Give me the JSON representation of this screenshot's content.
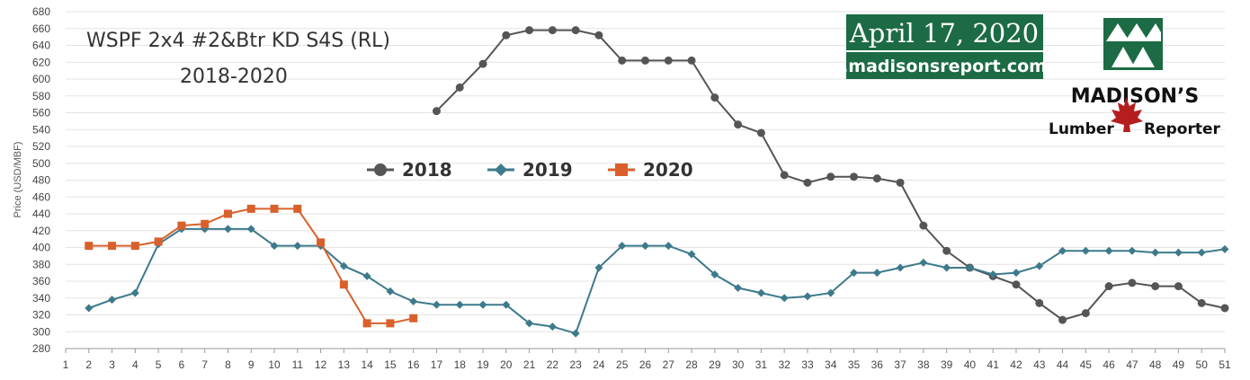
{
  "chart_data": {
    "type": "line",
    "title_line1": "WSPF 2x4 #2&Btr KD S4S (RL)",
    "title_line2": "2018-2020",
    "ylabel": "Price (USD/MBF)",
    "xlabel": "",
    "ylim": [
      280,
      680
    ],
    "ytick_step": 20,
    "xlim": [
      1,
      51
    ],
    "grid": true,
    "legend_position": "center",
    "series": [
      {
        "name": "2018",
        "color": "#555555",
        "marker": "circle",
        "points": [
          [
            17,
            562
          ],
          [
            18,
            590
          ],
          [
            19,
            618
          ],
          [
            20,
            652
          ],
          [
            21,
            658
          ],
          [
            22,
            658
          ],
          [
            23,
            658
          ],
          [
            24,
            652
          ],
          [
            25,
            622
          ],
          [
            26,
            622
          ],
          [
            27,
            622
          ],
          [
            28,
            622
          ],
          [
            29,
            578
          ],
          [
            30,
            546
          ],
          [
            31,
            536
          ],
          [
            32,
            486
          ],
          [
            33,
            477
          ],
          [
            34,
            484
          ],
          [
            35,
            484
          ],
          [
            36,
            482
          ],
          [
            37,
            477
          ],
          [
            38,
            426
          ],
          [
            39,
            396
          ],
          [
            40,
            376
          ],
          [
            41,
            366
          ],
          [
            42,
            356
          ],
          [
            43,
            334
          ],
          [
            44,
            314
          ],
          [
            45,
            322
          ],
          [
            46,
            354
          ],
          [
            47,
            358
          ],
          [
            48,
            354
          ],
          [
            49,
            354
          ],
          [
            50,
            334
          ],
          [
            51,
            328
          ]
        ]
      },
      {
        "name": "2019",
        "color": "#3d7a8c",
        "marker": "diamond",
        "points": [
          [
            2,
            328
          ],
          [
            3,
            338
          ],
          [
            4,
            346
          ],
          [
            5,
            404
          ],
          [
            6,
            422
          ],
          [
            7,
            422
          ],
          [
            8,
            422
          ],
          [
            9,
            422
          ],
          [
            10,
            402
          ],
          [
            11,
            402
          ],
          [
            12,
            402
          ],
          [
            13,
            378
          ],
          [
            14,
            366
          ],
          [
            15,
            348
          ],
          [
            16,
            336
          ],
          [
            17,
            332
          ],
          [
            18,
            332
          ],
          [
            19,
            332
          ],
          [
            20,
            332
          ],
          [
            21,
            310
          ],
          [
            22,
            306
          ],
          [
            23,
            298
          ],
          [
            24,
            376
          ],
          [
            25,
            402
          ],
          [
            26,
            402
          ],
          [
            27,
            402
          ],
          [
            28,
            392
          ],
          [
            29,
            368
          ],
          [
            30,
            352
          ],
          [
            31,
            346
          ],
          [
            32,
            340
          ],
          [
            33,
            342
          ],
          [
            34,
            346
          ],
          [
            35,
            370
          ],
          [
            36,
            370
          ],
          [
            37,
            376
          ],
          [
            38,
            382
          ],
          [
            39,
            376
          ],
          [
            40,
            376
          ],
          [
            41,
            368
          ],
          [
            42,
            370
          ],
          [
            43,
            378
          ],
          [
            44,
            396
          ],
          [
            45,
            396
          ],
          [
            46,
            396
          ],
          [
            47,
            396
          ],
          [
            48,
            394
          ],
          [
            49,
            394
          ],
          [
            50,
            394
          ],
          [
            51,
            398
          ]
        ]
      },
      {
        "name": "2020",
        "color": "#d9602b",
        "marker": "square",
        "points": [
          [
            2,
            402
          ],
          [
            3,
            402
          ],
          [
            4,
            402
          ],
          [
            5,
            407
          ],
          [
            6,
            426
          ],
          [
            7,
            428
          ],
          [
            8,
            440
          ],
          [
            9,
            446
          ],
          [
            10,
            446
          ],
          [
            11,
            446
          ],
          [
            12,
            406
          ],
          [
            13,
            356
          ],
          [
            14,
            310
          ],
          [
            15,
            310
          ],
          [
            16,
            316
          ]
        ]
      }
    ]
  },
  "branding": {
    "date": "April 17, 2020",
    "url": ".madisonsreport.com",
    "name": "MADISON’S",
    "sub_left": "Lumber",
    "sub_right": "Reporter",
    "green": "#1c6b44",
    "leaf": "#b51e1e"
  }
}
